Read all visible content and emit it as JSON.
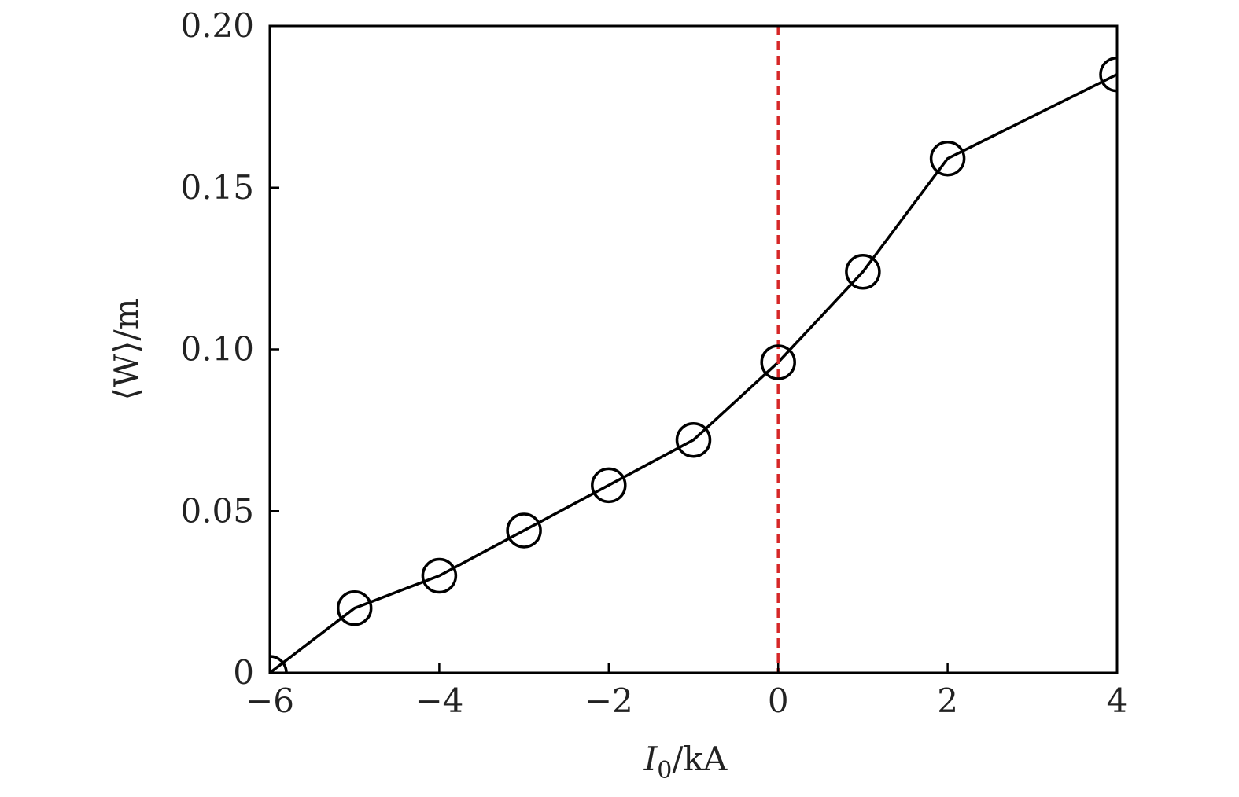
{
  "chart_data": {
    "type": "line",
    "xlabel": "I0/kA",
    "xlabel_main": "I",
    "xlabel_sub": "0",
    "xlabel_unit": "/kA",
    "ylabel": "⟨W⟩/m",
    "xlim": [
      -6,
      4
    ],
    "ylim": [
      0,
      0.2
    ],
    "xticks": [
      -6,
      -4,
      -2,
      0,
      2,
      4
    ],
    "xtick_labels": [
      "−6",
      "−4",
      "−2",
      "0",
      "2",
      "4"
    ],
    "yticks": [
      0,
      0.05,
      0.1,
      0.15,
      0.2
    ],
    "ytick_labels": [
      "0",
      "0.05",
      "0.10",
      "0.15",
      "0.20"
    ],
    "grid": false,
    "series": [
      {
        "x": [
          -6,
          -5,
          -4,
          -3,
          -2,
          -1,
          0,
          1,
          2,
          4
        ],
        "y": [
          0.0,
          0.02,
          0.03,
          0.044,
          0.058,
          0.072,
          0.096,
          0.124,
          0.159,
          0.185
        ],
        "marker": "open-circle",
        "color": "#000000"
      }
    ],
    "reference_line": {
      "x": 0,
      "style": "dashed",
      "color": "#d62728"
    }
  }
}
